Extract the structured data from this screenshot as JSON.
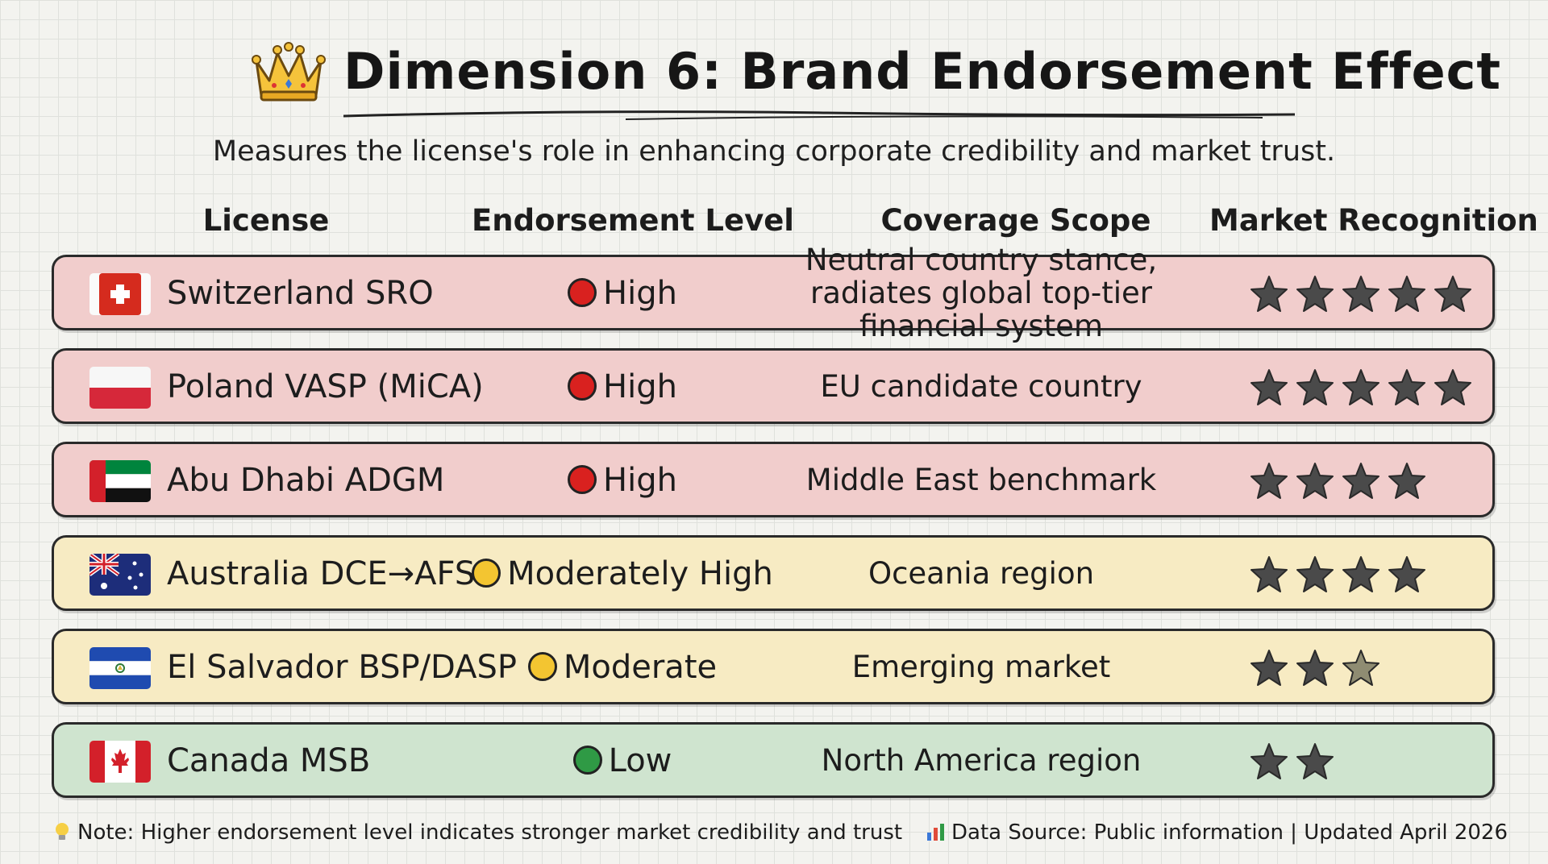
{
  "title": "Dimension 6: Brand Endorsement Effect",
  "subtitle": "Measures the license's role in enhancing corporate credibility and market trust.",
  "headers": {
    "license": "License",
    "level": "Endorsement Level",
    "scope": "Coverage Scope",
    "recognition": "Market Recognition"
  },
  "rows": [
    {
      "license": "Switzerland SRO",
      "flag": "switzerland-flag-icon",
      "level": "High",
      "level_color": "#d9211f",
      "scope": "Neutral country stance, radiates global top-tier financial system",
      "stars": 5
    },
    {
      "license": "Poland VASP (MiCA)",
      "flag": "poland-flag-icon",
      "level": "High",
      "level_color": "#d9211f",
      "scope": "EU candidate country",
      "stars": 5
    },
    {
      "license": "Abu Dhabi ADGM",
      "flag": "uae-flag-icon",
      "level": "High",
      "level_color": "#d9211f",
      "scope": "Middle East benchmark",
      "stars": 4
    },
    {
      "license": "Australia DCE→AFSL",
      "flag": "australia-flag-icon",
      "level": "Moderately High",
      "level_color": "#f3c531",
      "scope": "Oceania region",
      "stars": 4
    },
    {
      "license": "El Salvador BSP/DASP",
      "flag": "el-salvador-flag-icon",
      "level": "Moderate",
      "level_color": "#f3c531",
      "scope": "Emerging market",
      "stars": 2.5
    },
    {
      "license": "Canada MSB",
      "flag": "canada-flag-icon",
      "level": "Low",
      "level_color": "#2f9a45",
      "scope": "North America region",
      "stars": 2
    }
  ],
  "row_colors": {
    "high": "#f1cdcc",
    "medium": "#f7ebc3",
    "low": "#cfe4cf"
  },
  "footer": {
    "note": "Note: Higher endorsement level indicates stronger market credibility and trust",
    "note_icon": "lightbulb-icon",
    "source": "Data Source: Public information | Updated April 2026",
    "source_icon": "bar-chart-icon"
  }
}
